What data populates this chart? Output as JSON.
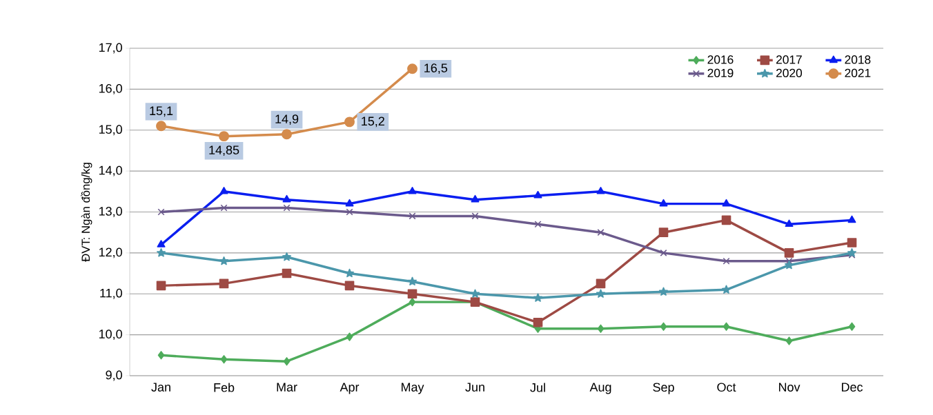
{
  "chart_data": {
    "type": "line",
    "ylabel": "ĐVT: Ngàn đồng/kg",
    "categories": [
      "Jan",
      "Feb",
      "Mar",
      "Apr",
      "May",
      "Jun",
      "Jul",
      "Aug",
      "Sep",
      "Oct",
      "Nov",
      "Dec"
    ],
    "ylim": [
      9,
      17
    ],
    "yticks": [
      {
        "value": 9,
        "label": "9,0"
      },
      {
        "value": 10,
        "label": "10,0"
      },
      {
        "value": 11,
        "label": "11,0"
      },
      {
        "value": 12,
        "label": "12,0"
      },
      {
        "value": 13,
        "label": "13,0"
      },
      {
        "value": 14,
        "label": "14,0"
      },
      {
        "value": 15,
        "label": "15,0"
      },
      {
        "value": 16,
        "label": "16,0"
      },
      {
        "value": 17,
        "label": "17,0"
      }
    ],
    "grid": "y",
    "legend": "top right",
    "line_style": "solid",
    "series": [
      {
        "name": "2016",
        "color": "#4eac5b",
        "marker": "diamond",
        "values": [
          9.5,
          9.4,
          9.35,
          9.95,
          10.8,
          10.8,
          10.15,
          10.15,
          10.2,
          10.2,
          9.85,
          10.2
        ]
      },
      {
        "name": "2017",
        "color": "#9e4a44",
        "marker": "square",
        "values": [
          11.2,
          11.25,
          11.5,
          11.2,
          11.0,
          10.8,
          10.3,
          11.25,
          12.5,
          12.8,
          12.0,
          12.25
        ]
      },
      {
        "name": "2018",
        "color": "#0a1ef0",
        "marker": "triangle",
        "values": [
          12.2,
          13.5,
          13.3,
          13.2,
          13.5,
          13.3,
          13.4,
          13.5,
          13.2,
          13.2,
          12.7,
          12.8
        ]
      },
      {
        "name": "2019",
        "color": "#6b5a8c",
        "marker": "cross",
        "values": [
          13.0,
          13.1,
          13.1,
          13.0,
          12.9,
          12.9,
          12.7,
          12.5,
          12.0,
          11.8,
          11.8,
          11.95
        ]
      },
      {
        "name": "2020",
        "color": "#4b97ab",
        "marker": "star",
        "values": [
          12.0,
          11.8,
          11.9,
          11.5,
          11.3,
          11.0,
          10.9,
          11.0,
          11.05,
          11.1,
          11.7,
          12.0
        ]
      },
      {
        "name": "2021",
        "color": "#d48b4c",
        "marker": "circle",
        "values": [
          15.1,
          14.85,
          14.9,
          15.2,
          16.5,
          null,
          null,
          null,
          null,
          null,
          null,
          null
        ],
        "value_labels": [
          "15,1",
          "14,85",
          "14,9",
          "15,2",
          "16,5",
          null,
          null,
          null,
          null,
          null,
          null,
          null
        ]
      }
    ]
  }
}
